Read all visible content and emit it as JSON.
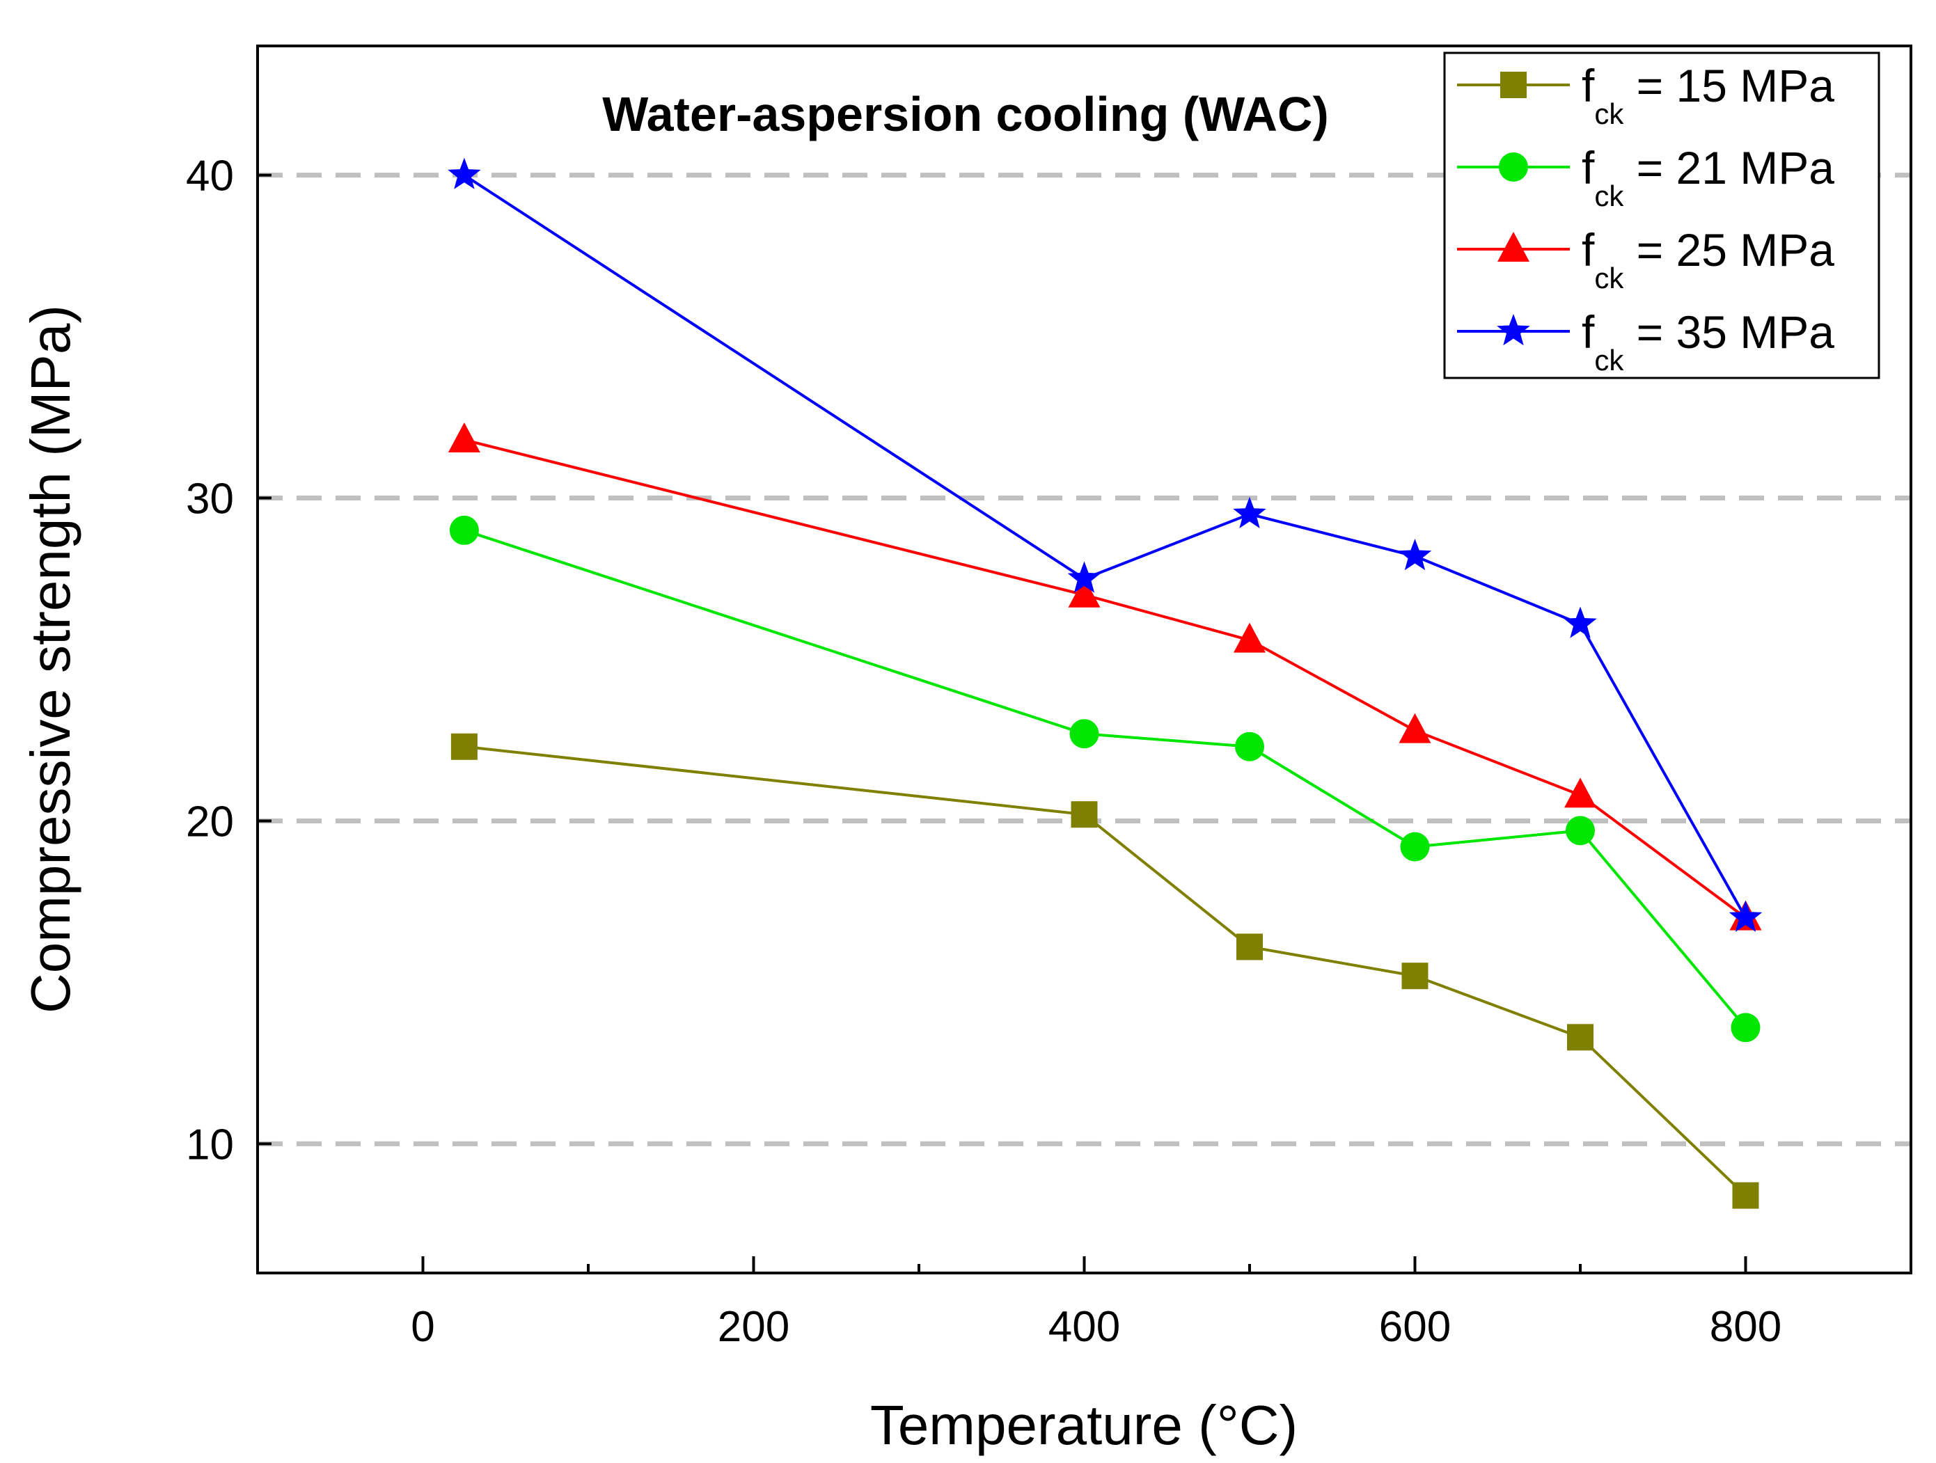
{
  "chart_data": {
    "type": "line",
    "title": "Water-aspersion cooling (WAC)",
    "xlabel": "Temperature (°C)",
    "ylabel": "Compressive strength (MPa)",
    "xlim": [
      -100,
      900
    ],
    "ylim": [
      6,
      44
    ],
    "xticks": [
      0,
      200,
      400,
      600,
      800
    ],
    "xticks_minor": [
      100,
      300,
      500,
      700
    ],
    "yticks": [
      10,
      20,
      30,
      40
    ],
    "grid": "horizontal dashed at major y ticks",
    "legend_position": "top-right",
    "series": [
      {
        "name": "f_ck = 15 MPa",
        "legend_main": "f",
        "legend_sub": "ck",
        "legend_rest": " = 15 MPa",
        "color": "#808000",
        "marker": "square",
        "x": [
          25,
          400,
          500,
          600,
          700,
          800
        ],
        "y": [
          22.3,
          20.2,
          16.1,
          15.2,
          13.3,
          8.4
        ]
      },
      {
        "name": "f_ck = 21 MPa",
        "legend_main": "f",
        "legend_sub": "ck",
        "legend_rest": " = 21 MPa",
        "color": "#00e600",
        "marker": "circle",
        "x": [
          25,
          400,
          500,
          600,
          700,
          800
        ],
        "y": [
          29.0,
          22.7,
          22.3,
          19.2,
          19.7,
          13.6
        ]
      },
      {
        "name": "f_ck = 25 MPa",
        "legend_main": "f",
        "legend_sub": "ck",
        "legend_rest": " = 25 MPa",
        "color": "#ff0000",
        "marker": "triangle",
        "x": [
          25,
          400,
          500,
          600,
          700,
          800
        ],
        "y": [
          31.8,
          27.0,
          25.6,
          22.8,
          20.8,
          17.0
        ]
      },
      {
        "name": "f_ck = 35 MPa",
        "legend_main": "f",
        "legend_sub": "ck",
        "legend_rest": " = 35 MPa",
        "color": "#0000ff",
        "marker": "star",
        "x": [
          25,
          400,
          500,
          600,
          700,
          800
        ],
        "y": [
          40.0,
          27.5,
          29.5,
          28.2,
          26.1,
          17.0
        ]
      }
    ]
  }
}
